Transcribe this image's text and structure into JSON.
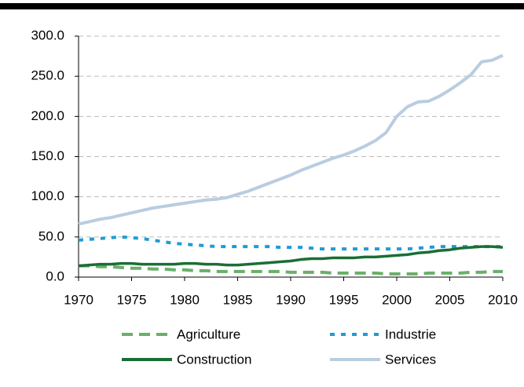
{
  "chart_data": {
    "type": "line",
    "x": [
      1970,
      1971,
      1972,
      1973,
      1974,
      1975,
      1976,
      1977,
      1978,
      1979,
      1980,
      1981,
      1982,
      1983,
      1984,
      1985,
      1986,
      1987,
      1988,
      1989,
      1990,
      1991,
      1992,
      1993,
      1994,
      1995,
      1996,
      1997,
      1998,
      1999,
      2000,
      2001,
      2002,
      2003,
      2004,
      2005,
      2006,
      2007,
      2008,
      2009,
      2010
    ],
    "series": [
      {
        "name": "Agriculture",
        "color": "#6aaf6a",
        "style": "dashed",
        "values": [
          14,
          14,
          13,
          13,
          12,
          11,
          11,
          10,
          10,
          9,
          9,
          8,
          8,
          7,
          7,
          7,
          7,
          7,
          7,
          7,
          6,
          6,
          6,
          6,
          5,
          5,
          5,
          5,
          5,
          4,
          4,
          4,
          4,
          5,
          5,
          5,
          5,
          6,
          6,
          7,
          7
        ]
      },
      {
        "name": "Industrie",
        "color": "#1f9bd7",
        "style": "dotted",
        "values": [
          46,
          47,
          48,
          49,
          50,
          49,
          48,
          46,
          44,
          42,
          41,
          40,
          39,
          38,
          38,
          38,
          38,
          38,
          38,
          37,
          37,
          37,
          36,
          35,
          35,
          35,
          35,
          35,
          35,
          35,
          35,
          35,
          36,
          37,
          38,
          38,
          38,
          38,
          38,
          38,
          38
        ]
      },
      {
        "name": "Construction",
        "color": "#1a6e35",
        "style": "solid",
        "values": [
          14,
          15,
          16,
          16,
          17,
          17,
          16,
          16,
          16,
          16,
          17,
          17,
          16,
          16,
          15,
          15,
          16,
          17,
          18,
          19,
          20,
          22,
          23,
          23,
          24,
          24,
          24,
          25,
          25,
          26,
          27,
          28,
          30,
          31,
          33,
          34,
          36,
          37,
          38,
          38,
          37
        ]
      },
      {
        "name": "Services",
        "color": "#b9cde0",
        "style": "solid",
        "values": [
          66,
          69,
          72,
          74,
          77,
          80,
          83,
          86,
          88,
          90,
          92,
          94,
          96,
          97,
          99,
          103,
          107,
          112,
          117,
          122,
          127,
          133,
          138,
          143,
          148,
          152,
          157,
          163,
          170,
          180,
          200,
          212,
          218,
          219,
          225,
          233,
          242,
          252,
          268,
          270,
          276
        ]
      }
    ],
    "xlim": [
      1970,
      2010
    ],
    "xticks": [
      1970,
      1975,
      1980,
      1985,
      1990,
      1995,
      2000,
      2005,
      2010
    ],
    "ylim": [
      0,
      300
    ],
    "yticks": [
      {
        "value": 0,
        "label": "0.0"
      },
      {
        "value": 50,
        "label": "50.0"
      },
      {
        "value": 100,
        "label": "100.0"
      },
      {
        "value": 150,
        "label": "150.0"
      },
      {
        "value": 200,
        "label": "200.0"
      },
      {
        "value": 250,
        "label": "250.0"
      },
      {
        "value": 300,
        "label": "300.0"
      }
    ],
    "grid": true,
    "legend": "bottom"
  }
}
